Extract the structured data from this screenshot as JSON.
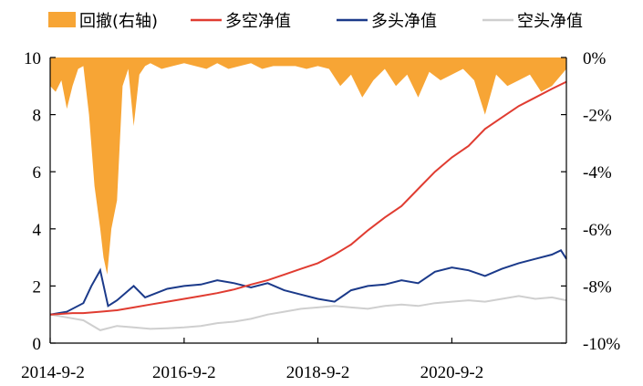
{
  "chart_data": {
    "type": "line",
    "title": "",
    "xlabel": "",
    "ylabel": "",
    "ylabel_right": "",
    "x_range": [
      "2014-09-02",
      "2022-05-20"
    ],
    "x_ticks": [
      "2014-09-02",
      "2016-09-02",
      "2018-09-02",
      "2020-09-02"
    ],
    "x_tick_labels": [
      "2014-9-2",
      "2016-9-2",
      "2018-9-2",
      "2020-9-2"
    ],
    "ylim_left": [
      0,
      10
    ],
    "y_ticks_left": [
      0,
      2,
      4,
      6,
      8,
      10
    ],
    "y_tick_labels_left": [
      "0",
      "2",
      "4",
      "6",
      "8",
      "10"
    ],
    "ylim_right": [
      -0.1,
      0
    ],
    "y_ticks_right": [
      -0.1,
      -0.08,
      -0.06,
      -0.04,
      -0.02,
      0
    ],
    "y_tick_labels_right": [
      "-10%",
      "-8%",
      "-6%",
      "-4%",
      "-2%",
      "0%"
    ],
    "grid": false,
    "legend_position": "top",
    "legend": [
      {
        "key": "drawdown",
        "label": "回撤(右轴)",
        "kind": "area"
      },
      {
        "key": "long_short",
        "label": "多空净值",
        "kind": "line"
      },
      {
        "key": "long",
        "label": "多头净值",
        "kind": "line"
      },
      {
        "key": "short",
        "label": "空头净值",
        "kind": "line"
      }
    ],
    "colors": {
      "drawdown": "#f7a535",
      "long_short": "#e03c31",
      "long": "#1b3a8a",
      "short": "#cfcfcf"
    },
    "series": [
      {
        "key": "long_short",
        "axis": "left",
        "points": [
          [
            "2014-09-02",
            1.0
          ],
          [
            "2015-01-02",
            1.05
          ],
          [
            "2015-03-02",
            1.05
          ],
          [
            "2015-06-02",
            1.1
          ],
          [
            "2015-09-02",
            1.15
          ],
          [
            "2015-12-02",
            1.25
          ],
          [
            "2016-03-02",
            1.35
          ],
          [
            "2016-06-02",
            1.45
          ],
          [
            "2016-09-02",
            1.55
          ],
          [
            "2016-12-02",
            1.65
          ],
          [
            "2017-03-02",
            1.75
          ],
          [
            "2017-06-02",
            1.88
          ],
          [
            "2017-09-02",
            2.05
          ],
          [
            "2017-12-02",
            2.2
          ],
          [
            "2018-03-02",
            2.4
          ],
          [
            "2018-06-02",
            2.6
          ],
          [
            "2018-09-02",
            2.8
          ],
          [
            "2018-12-02",
            3.1
          ],
          [
            "2019-03-02",
            3.45
          ],
          [
            "2019-06-02",
            3.95
          ],
          [
            "2019-09-02",
            4.4
          ],
          [
            "2019-12-02",
            4.8
          ],
          [
            "2020-03-02",
            5.4
          ],
          [
            "2020-06-02",
            6.0
          ],
          [
            "2020-09-02",
            6.5
          ],
          [
            "2020-12-02",
            6.9
          ],
          [
            "2021-03-02",
            7.5
          ],
          [
            "2021-06-02",
            7.9
          ],
          [
            "2021-09-02",
            8.3
          ],
          [
            "2021-12-02",
            8.6
          ],
          [
            "2022-03-02",
            8.9
          ],
          [
            "2022-05-20",
            9.15
          ]
        ]
      },
      {
        "key": "long",
        "axis": "left",
        "points": [
          [
            "2014-09-02",
            1.0
          ],
          [
            "2014-12-02",
            1.1
          ],
          [
            "2015-03-02",
            1.4
          ],
          [
            "2015-04-15",
            2.0
          ],
          [
            "2015-06-02",
            2.55
          ],
          [
            "2015-07-15",
            1.3
          ],
          [
            "2015-09-02",
            1.5
          ],
          [
            "2015-12-02",
            2.0
          ],
          [
            "2016-02-02",
            1.6
          ],
          [
            "2016-06-02",
            1.9
          ],
          [
            "2016-09-02",
            2.0
          ],
          [
            "2016-12-02",
            2.05
          ],
          [
            "2017-03-02",
            2.2
          ],
          [
            "2017-06-02",
            2.1
          ],
          [
            "2017-09-02",
            1.95
          ],
          [
            "2017-12-02",
            2.1
          ],
          [
            "2018-03-02",
            1.85
          ],
          [
            "2018-06-02",
            1.7
          ],
          [
            "2018-09-02",
            1.55
          ],
          [
            "2018-12-02",
            1.45
          ],
          [
            "2019-03-02",
            1.85
          ],
          [
            "2019-06-02",
            2.0
          ],
          [
            "2019-09-02",
            2.05
          ],
          [
            "2019-12-02",
            2.2
          ],
          [
            "2020-03-02",
            2.1
          ],
          [
            "2020-06-02",
            2.5
          ],
          [
            "2020-09-02",
            2.65
          ],
          [
            "2020-12-02",
            2.55
          ],
          [
            "2021-03-02",
            2.35
          ],
          [
            "2021-06-02",
            2.6
          ],
          [
            "2021-09-02",
            2.8
          ],
          [
            "2021-12-02",
            2.95
          ],
          [
            "2022-03-02",
            3.1
          ],
          [
            "2022-04-20",
            3.25
          ],
          [
            "2022-05-20",
            2.95
          ]
        ]
      },
      {
        "key": "short",
        "axis": "left",
        "points": [
          [
            "2014-09-02",
            1.0
          ],
          [
            "2014-12-02",
            0.9
          ],
          [
            "2015-03-02",
            0.8
          ],
          [
            "2015-06-02",
            0.45
          ],
          [
            "2015-09-02",
            0.6
          ],
          [
            "2015-12-02",
            0.55
          ],
          [
            "2016-03-02",
            0.5
          ],
          [
            "2016-06-02",
            0.52
          ],
          [
            "2016-09-02",
            0.55
          ],
          [
            "2016-12-02",
            0.6
          ],
          [
            "2017-03-02",
            0.7
          ],
          [
            "2017-06-02",
            0.75
          ],
          [
            "2017-09-02",
            0.85
          ],
          [
            "2017-12-02",
            1.0
          ],
          [
            "2018-03-02",
            1.1
          ],
          [
            "2018-06-02",
            1.2
          ],
          [
            "2018-09-02",
            1.25
          ],
          [
            "2018-12-02",
            1.3
          ],
          [
            "2019-03-02",
            1.25
          ],
          [
            "2019-06-02",
            1.2
          ],
          [
            "2019-09-02",
            1.3
          ],
          [
            "2019-12-02",
            1.35
          ],
          [
            "2020-03-02",
            1.3
          ],
          [
            "2020-06-02",
            1.4
          ],
          [
            "2020-09-02",
            1.45
          ],
          [
            "2020-12-02",
            1.5
          ],
          [
            "2021-03-02",
            1.45
          ],
          [
            "2021-06-02",
            1.55
          ],
          [
            "2021-09-02",
            1.65
          ],
          [
            "2021-12-02",
            1.55
          ],
          [
            "2022-03-02",
            1.6
          ],
          [
            "2022-05-20",
            1.5
          ]
        ]
      },
      {
        "key": "drawdown",
        "axis": "right",
        "points": [
          [
            "2014-09-02",
            -0.01
          ],
          [
            "2014-10-02",
            -0.012
          ],
          [
            "2014-11-02",
            -0.008
          ],
          [
            "2014-12-02",
            -0.018
          ],
          [
            "2015-01-02",
            -0.01
          ],
          [
            "2015-02-02",
            -0.004
          ],
          [
            "2015-03-02",
            -0.003
          ],
          [
            "2015-04-02",
            -0.02
          ],
          [
            "2015-05-02",
            -0.045
          ],
          [
            "2015-06-02",
            -0.06
          ],
          [
            "2015-06-20",
            -0.07
          ],
          [
            "2015-07-10",
            -0.076
          ],
          [
            "2015-08-02",
            -0.06
          ],
          [
            "2015-09-02",
            -0.05
          ],
          [
            "2015-10-02",
            -0.01
          ],
          [
            "2015-11-02",
            -0.004
          ],
          [
            "2015-12-02",
            -0.024
          ],
          [
            "2016-01-02",
            -0.006
          ],
          [
            "2016-02-02",
            -0.003
          ],
          [
            "2016-03-02",
            -0.002
          ],
          [
            "2016-05-02",
            -0.004
          ],
          [
            "2016-07-02",
            -0.003
          ],
          [
            "2016-09-02",
            -0.002
          ],
          [
            "2016-11-02",
            -0.003
          ],
          [
            "2017-01-02",
            -0.004
          ],
          [
            "2017-03-02",
            -0.002
          ],
          [
            "2017-05-02",
            -0.004
          ],
          [
            "2017-07-02",
            -0.003
          ],
          [
            "2017-09-02",
            -0.002
          ],
          [
            "2017-11-02",
            -0.004
          ],
          [
            "2018-01-02",
            -0.003
          ],
          [
            "2018-03-02",
            -0.003
          ],
          [
            "2018-05-02",
            -0.003
          ],
          [
            "2018-07-02",
            -0.004
          ],
          [
            "2018-09-02",
            -0.003
          ],
          [
            "2018-11-02",
            -0.004
          ],
          [
            "2019-01-02",
            -0.01
          ],
          [
            "2019-03-02",
            -0.006
          ],
          [
            "2019-05-02",
            -0.014
          ],
          [
            "2019-07-02",
            -0.008
          ],
          [
            "2019-09-02",
            -0.004
          ],
          [
            "2019-11-02",
            -0.01
          ],
          [
            "2020-01-02",
            -0.006
          ],
          [
            "2020-03-02",
            -0.014
          ],
          [
            "2020-05-02",
            -0.005
          ],
          [
            "2020-07-02",
            -0.008
          ],
          [
            "2020-09-02",
            -0.006
          ],
          [
            "2020-11-02",
            -0.004
          ],
          [
            "2021-01-02",
            -0.008
          ],
          [
            "2021-03-02",
            -0.02
          ],
          [
            "2021-05-02",
            -0.006
          ],
          [
            "2021-07-02",
            -0.01
          ],
          [
            "2021-09-02",
            -0.008
          ],
          [
            "2021-11-02",
            -0.006
          ],
          [
            "2022-01-02",
            -0.012
          ],
          [
            "2022-03-02",
            -0.01
          ],
          [
            "2022-05-20",
            -0.004
          ]
        ]
      }
    ]
  }
}
